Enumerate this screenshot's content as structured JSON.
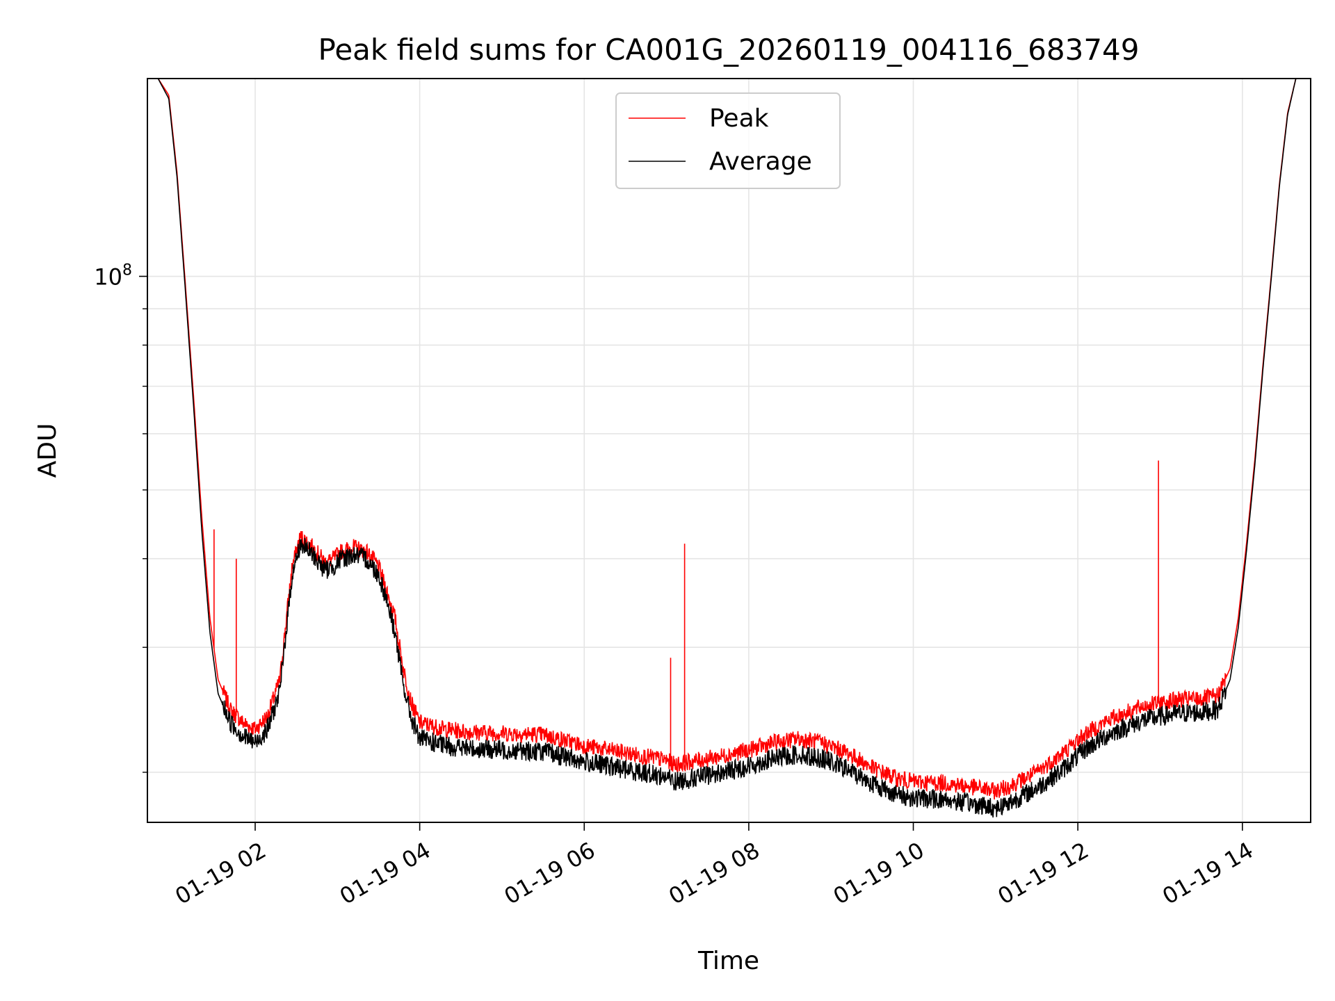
{
  "chart_data": {
    "type": "line",
    "title": "Peak field sums for CA001G_20260119_004116_683749",
    "xlabel": "Time",
    "ylabel": "ADU",
    "yscale": "log",
    "xlim": [
      0.69,
      14.83
    ],
    "ylim": [
      17000000,
      190000000
    ],
    "grid": true,
    "x_ticks": [
      {
        "value": 2,
        "label": "01-19 02"
      },
      {
        "value": 4,
        "label": "01-19 04"
      },
      {
        "value": 6,
        "label": "01-19 06"
      },
      {
        "value": 8,
        "label": "01-19 08"
      },
      {
        "value": 10,
        "label": "01-19 10"
      },
      {
        "value": 12,
        "label": "01-19 12"
      },
      {
        "value": 14,
        "label": "01-19 14"
      }
    ],
    "y_major_tick": {
      "value": 100000000,
      "label_base": "10",
      "label_exp": "8"
    },
    "y_minor_ticks": [
      20000000,
      30000000,
      40000000,
      50000000,
      60000000,
      70000000,
      80000000,
      90000000
    ],
    "legend": {
      "position": "top-center",
      "entries": [
        "Peak",
        "Average"
      ]
    },
    "series": [
      {
        "name": "Peak",
        "color": "#ff0000",
        "x": [
          0.7,
          0.82,
          0.95,
          1.05,
          1.15,
          1.25,
          1.35,
          1.45,
          1.55,
          1.7,
          1.85,
          2.0,
          2.15,
          2.3,
          2.38,
          2.45,
          2.55,
          2.7,
          2.85,
          2.95,
          3.05,
          3.2,
          3.35,
          3.5,
          3.6,
          3.7,
          3.8,
          3.9,
          4.0,
          4.3,
          4.6,
          5.0,
          5.5,
          6.0,
          6.5,
          7.0,
          7.1,
          7.3,
          7.6,
          8.0,
          8.3,
          8.6,
          8.9,
          9.2,
          9.5,
          9.8,
          10.0,
          10.4,
          10.8,
          11.0,
          11.2,
          11.5,
          11.8,
          12.1,
          12.4,
          12.8,
          13.2,
          13.5,
          13.7,
          13.85,
          13.95,
          14.05,
          14.15,
          14.25,
          14.35,
          14.45,
          14.55,
          14.65,
          14.83
        ],
        "y": [
          190000000,
          190000000,
          180000000,
          140000000,
          98000000,
          68000000,
          46000000,
          33000000,
          27000000,
          24500000,
          23500000,
          23000000,
          24000000,
          27000000,
          33000000,
          39000000,
          43000000,
          41500000,
          39500000,
          40000000,
          41000000,
          41500000,
          41000000,
          39000000,
          36000000,
          33000000,
          28000000,
          25000000,
          23500000,
          23000000,
          22800000,
          22700000,
          22600000,
          21800000,
          21300000,
          20800000,
          20500000,
          20700000,
          21000000,
          21500000,
          22000000,
          22300000,
          22000000,
          21300000,
          20300000,
          19600000,
          19400000,
          19300000,
          19000000,
          18800000,
          19200000,
          20000000,
          21200000,
          22700000,
          23800000,
          24800000,
          25300000,
          25400000,
          25600000,
          28000000,
          33000000,
          42000000,
          55000000,
          75000000,
          100000000,
          135000000,
          170000000,
          190000000,
          190000000
        ],
        "spikes": [
          {
            "x": 1.5,
            "y": 44000000
          },
          {
            "x": 1.77,
            "y": 40000000
          },
          {
            "x": 7.05,
            "y": 29000000
          },
          {
            "x": 7.22,
            "y": 42000000
          },
          {
            "x": 12.98,
            "y": 55000000
          }
        ]
      },
      {
        "name": "Average",
        "color": "#000000",
        "x": [
          0.7,
          0.82,
          0.95,
          1.05,
          1.15,
          1.25,
          1.35,
          1.45,
          1.55,
          1.7,
          1.85,
          2.0,
          2.15,
          2.3,
          2.38,
          2.45,
          2.55,
          2.7,
          2.85,
          2.95,
          3.05,
          3.2,
          3.35,
          3.5,
          3.6,
          3.7,
          3.8,
          3.9,
          4.0,
          4.3,
          4.6,
          5.0,
          5.5,
          6.0,
          6.5,
          7.0,
          7.1,
          7.3,
          7.6,
          8.0,
          8.3,
          8.6,
          8.9,
          9.2,
          9.5,
          9.8,
          10.0,
          10.4,
          10.8,
          11.0,
          11.2,
          11.5,
          11.8,
          12.1,
          12.4,
          12.8,
          13.2,
          13.5,
          13.7,
          13.85,
          13.95,
          14.05,
          14.15,
          14.25,
          14.35,
          14.45,
          14.55,
          14.65,
          14.83
        ],
        "y": [
          190000000,
          190000000,
          178000000,
          138000000,
          96000000,
          66000000,
          44000000,
          31500000,
          25800000,
          23500000,
          22500000,
          22000000,
          23000000,
          26000000,
          32000000,
          38000000,
          42000000,
          40500000,
          38500000,
          39000000,
          40000000,
          40500000,
          40000000,
          38000000,
          35000000,
          31500000,
          26500000,
          23800000,
          22300000,
          21800000,
          21600000,
          21500000,
          21400000,
          20700000,
          20200000,
          19700000,
          19400000,
          19600000,
          19900000,
          20400000,
          20900000,
          21200000,
          20900000,
          20200000,
          19300000,
          18600000,
          18400000,
          18300000,
          18000000,
          17800000,
          18200000,
          19000000,
          20100000,
          21600000,
          22700000,
          23700000,
          24200000,
          24300000,
          24500000,
          27000000,
          32000000,
          41000000,
          54000000,
          74000000,
          99000000,
          134000000,
          169000000,
          190000000,
          190000000
        ]
      }
    ]
  }
}
